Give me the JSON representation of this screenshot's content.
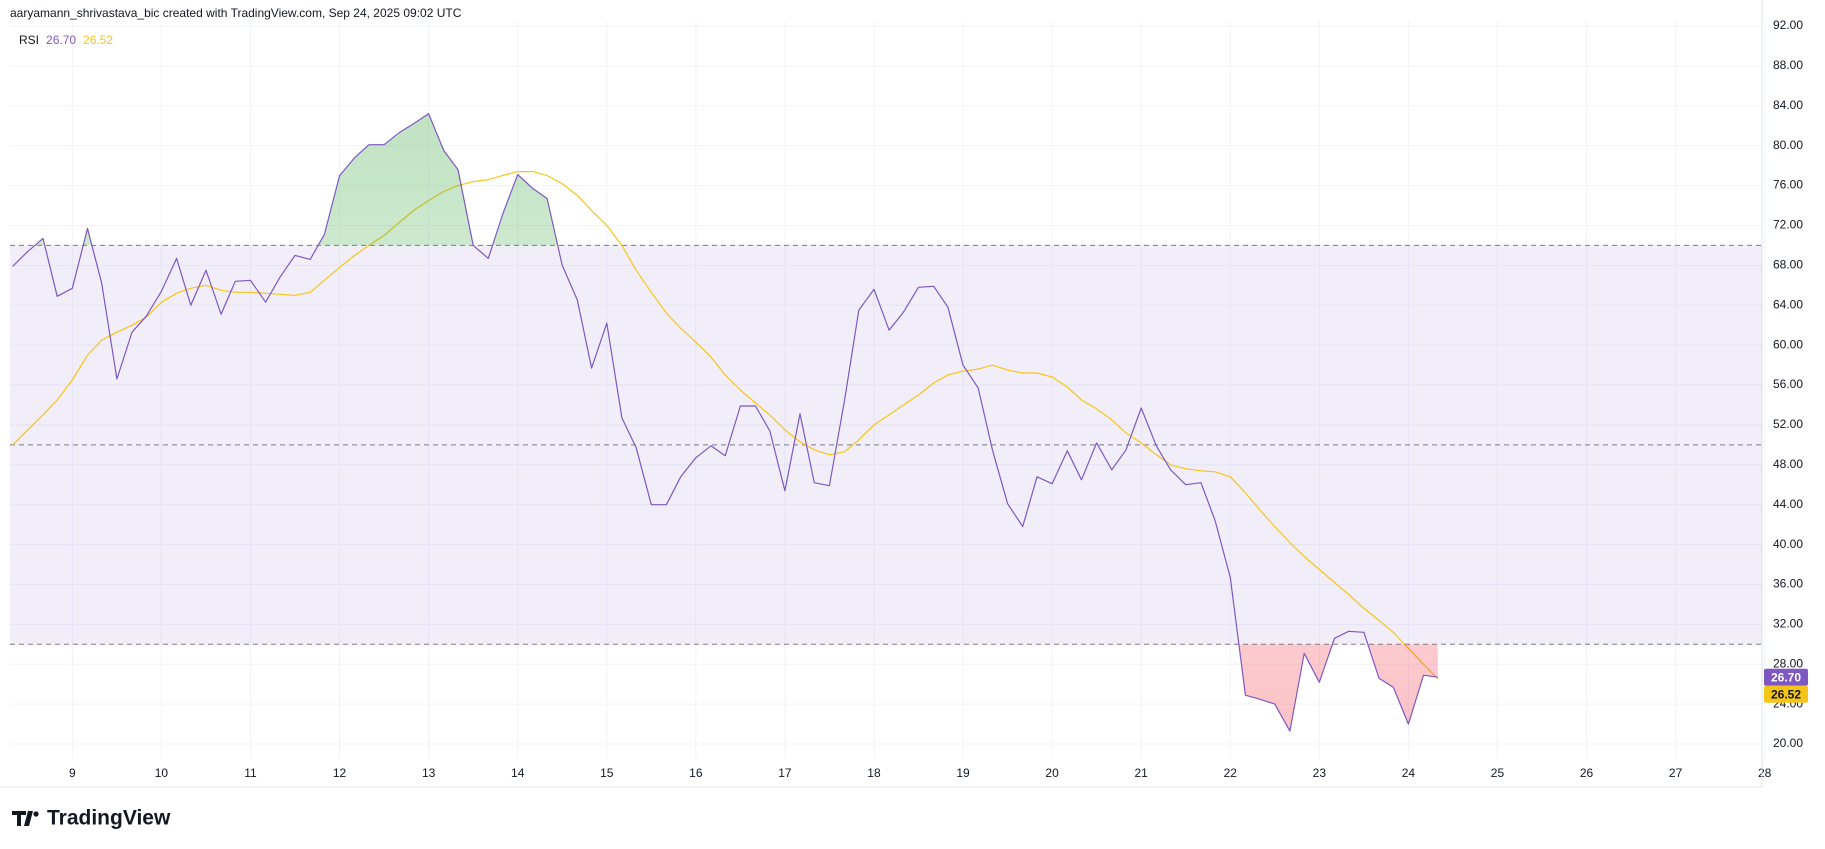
{
  "chart_data": {
    "type": "line",
    "header": "aaryamann_shrivastava_bic created with TradingView.com, Sep 24, 2025 09:02 UTC",
    "logo_text": "TradingView",
    "x": [
      8.33,
      8.5,
      8.67,
      8.83,
      9,
      9.17,
      9.33,
      9.5,
      9.67,
      9.83,
      10,
      10.17,
      10.33,
      10.5,
      10.67,
      10.83,
      11,
      11.17,
      11.33,
      11.5,
      11.67,
      11.83,
      12,
      12.17,
      12.33,
      12.5,
      12.67,
      12.83,
      13,
      13.17,
      13.33,
      13.5,
      13.67,
      13.83,
      14,
      14.17,
      14.33,
      14.5,
      14.67,
      14.83,
      15,
      15.17,
      15.33,
      15.5,
      15.67,
      15.83,
      16,
      16.17,
      16.33,
      16.5,
      16.67,
      16.83,
      17,
      17.17,
      17.33,
      17.5,
      17.67,
      17.83,
      18,
      18.17,
      18.33,
      18.5,
      18.67,
      18.83,
      19,
      19.17,
      19.33,
      19.5,
      19.67,
      19.83,
      20,
      20.17,
      20.33,
      20.5,
      20.67,
      20.83,
      21,
      21.17,
      21.33,
      21.5,
      21.67,
      21.83,
      22,
      22.17,
      22.33,
      22.5,
      22.67,
      22.83,
      23,
      23.17,
      23.33,
      23.5,
      23.67,
      23.83,
      24,
      24.17,
      24.33
    ],
    "series": [
      {
        "name": "RSI",
        "color": "#7e57c2",
        "last_label": "26.70",
        "values": [
          67.9,
          69.4,
          70.7,
          64.9,
          65.7,
          71.7,
          66.2,
          56.6,
          61.3,
          62.9,
          65.4,
          68.7,
          64.0,
          67.5,
          63.1,
          66.4,
          66.5,
          64.3,
          66.8,
          69.0,
          68.6,
          71.1,
          77.0,
          78.8,
          80.1,
          80.1,
          81.3,
          82.2,
          83.2,
          79.5,
          77.6,
          70.0,
          68.7,
          73.1,
          77.1,
          75.7,
          74.7,
          68.0,
          64.5,
          57.7,
          62.2,
          52.7,
          49.7,
          44.0,
          44.0,
          46.8,
          48.7,
          49.9,
          48.9,
          53.9,
          53.9,
          51.4,
          45.4,
          53.1,
          46.2,
          45.9,
          54.5,
          63.5,
          65.6,
          61.5,
          63.3,
          65.8,
          65.9,
          63.8,
          58.0,
          55.7,
          49.5,
          44.1,
          41.8,
          46.8,
          46.1,
          49.4,
          46.5,
          50.2,
          47.5,
          49.5,
          53.7,
          49.9,
          47.5,
          46.0,
          46.2,
          42.4,
          36.7,
          24.9,
          24.5,
          24.0,
          21.3,
          29.1,
          26.2,
          30.6,
          31.3,
          31.2,
          26.6,
          25.7,
          22.0,
          26.9,
          26.7
        ]
      },
      {
        "color": "#f5c518",
        "last_label": "26.52",
        "values": [
          50.0,
          51.5,
          53.0,
          54.5,
          56.5,
          59.0,
          60.5,
          61.3,
          62.0,
          62.8,
          64.3,
          65.2,
          65.7,
          66.0,
          65.5,
          65.3,
          65.3,
          65.2,
          65.1,
          65.0,
          65.3,
          66.5,
          67.8,
          69.0,
          70.0,
          71.0,
          72.3,
          73.5,
          74.5,
          75.4,
          76.0,
          76.4,
          76.6,
          77.0,
          77.4,
          77.4,
          77.0,
          76.2,
          75.0,
          73.5,
          72.0,
          70.0,
          67.5,
          65.3,
          63.2,
          61.7,
          60.3,
          58.8,
          57.0,
          55.5,
          54.2,
          53.0,
          51.5,
          50.3,
          49.5,
          49.0,
          49.3,
          50.5,
          52.0,
          53.0,
          54.0,
          55.0,
          56.2,
          57.0,
          57.4,
          57.6,
          58.0,
          57.5,
          57.2,
          57.2,
          56.8,
          55.8,
          54.5,
          53.6,
          52.5,
          51.2,
          50.2,
          49.0,
          48.0,
          47.6,
          47.4,
          47.3,
          46.8,
          45.2,
          43.5,
          41.8,
          40.2,
          38.8,
          37.5,
          36.2,
          35.0,
          33.6,
          32.4,
          31.2,
          29.6,
          28.0,
          26.52
        ]
      }
    ],
    "levels": [
      70,
      50,
      30
    ],
    "xlim": [
      8.3,
      27.97
    ],
    "xticks": [
      9,
      10,
      11,
      12,
      13,
      14,
      15,
      16,
      17,
      18,
      19,
      20,
      21,
      22,
      23,
      24,
      25,
      26,
      27,
      28
    ],
    "ylim": [
      18.5,
      92.5
    ],
    "yticks": [
      {
        "value": 20,
        "label": "20.00"
      },
      {
        "value": 24,
        "label": "24.00"
      },
      {
        "value": 28,
        "label": "28.00"
      },
      {
        "value": 32,
        "label": "32.00"
      },
      {
        "value": 36,
        "label": "36.00"
      },
      {
        "value": 40,
        "label": "40.00"
      },
      {
        "value": 44,
        "label": "44.00"
      },
      {
        "value": 48,
        "label": "48.00"
      },
      {
        "value": 52,
        "label": "52.00"
      },
      {
        "value": 56,
        "label": "56.00"
      },
      {
        "value": 60,
        "label": "60.00"
      },
      {
        "value": 64,
        "label": "64.00"
      },
      {
        "value": 68,
        "label": "68.00"
      },
      {
        "value": 72,
        "label": "72.00"
      },
      {
        "value": 76,
        "label": "76.00"
      },
      {
        "value": 80,
        "label": "80.00"
      },
      {
        "value": 84,
        "label": "84.00"
      },
      {
        "value": 88,
        "label": "88.00"
      },
      {
        "value": 92,
        "label": "92.00"
      }
    ],
    "grid": true
  }
}
